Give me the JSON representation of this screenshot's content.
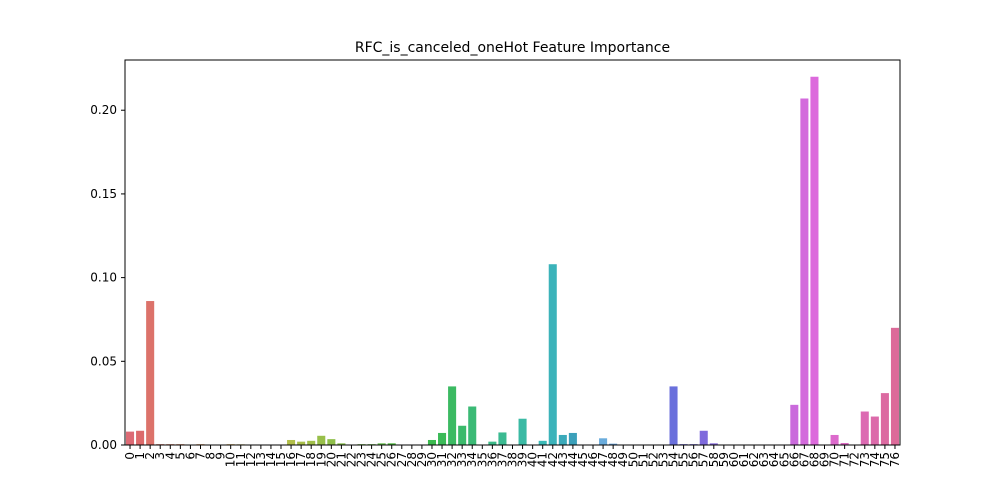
{
  "chart_data": {
    "type": "bar",
    "title": "RFC_is_canceled_oneHot Feature Importance",
    "xlabel": "",
    "ylabel": "",
    "ylim": [
      0,
      0.23
    ],
    "yticks": [
      0.0,
      0.05,
      0.1,
      0.15,
      0.2
    ],
    "ytick_labels": [
      "0.00",
      "0.05",
      "0.10",
      "0.15",
      "0.20"
    ],
    "grid": false,
    "categories": [
      "0",
      "1",
      "2",
      "3",
      "4",
      "5",
      "6",
      "7",
      "8",
      "9",
      "10",
      "11",
      "12",
      "13",
      "14",
      "15",
      "16",
      "17",
      "18",
      "19",
      "20",
      "21",
      "22",
      "23",
      "24",
      "25",
      "26",
      "27",
      "28",
      "29",
      "30",
      "31",
      "32",
      "33",
      "34",
      "35",
      "36",
      "37",
      "38",
      "39",
      "40",
      "41",
      "42",
      "43",
      "44",
      "45",
      "46",
      "47",
      "48",
      "49",
      "50",
      "51",
      "52",
      "53",
      "54",
      "55",
      "56",
      "57",
      "58",
      "59",
      "60",
      "61",
      "62",
      "63",
      "64",
      "65",
      "66",
      "67",
      "68",
      "69",
      "70",
      "71",
      "72",
      "73",
      "74",
      "75",
      "76"
    ],
    "values": [
      0.008,
      0.0085,
      0.086,
      0.0005,
      0.0005,
      0.0005,
      0.0003,
      0.0005,
      0.0003,
      0.0002,
      0.0005,
      0.0004,
      0.0002,
      0.0001,
      0.0003,
      0.0001,
      0.003,
      0.002,
      0.0025,
      0.0055,
      0.0035,
      0.001,
      0.0002,
      0.0005,
      0.0005,
      0.001,
      0.001,
      0.0002,
      0.0001,
      0.0001,
      0.003,
      0.0072,
      0.035,
      0.0115,
      0.023,
      0.0001,
      0.002,
      0.0075,
      0.0001,
      0.0157,
      0.0001,
      0.0025,
      0.108,
      0.006,
      0.0072,
      0.0001,
      0.0001,
      0.004,
      0.0008,
      0.0001,
      0.0001,
      0.0001,
      0.0001,
      0.0001,
      0.035,
      0.0005,
      0.0005,
      0.0085,
      0.001,
      0.0003,
      0.0001,
      0.0001,
      0.0001,
      0.0001,
      0.0001,
      0.0001,
      0.024,
      0.207,
      0.22,
      0.0003,
      0.006,
      0.0012,
      0.0003,
      0.02,
      0.017,
      0.031,
      0.07
    ]
  }
}
